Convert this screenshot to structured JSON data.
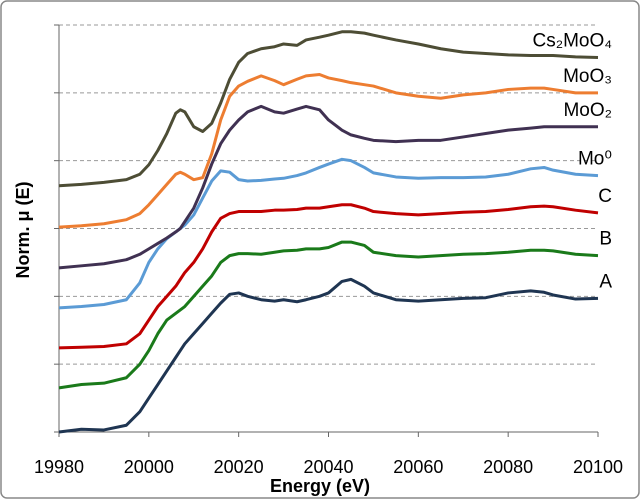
{
  "chart_data": {
    "type": "line",
    "xlabel": "Energy (eV)",
    "ylabel": "Norm. μ (E)",
    "x": [
      19980,
      19985,
      19990,
      19995,
      19998,
      20000,
      20002,
      20004,
      20006,
      20007,
      20008,
      20010,
      20012,
      20014,
      20016,
      20018,
      20020,
      20022,
      20025,
      20028,
      20030,
      20033,
      20035,
      20038,
      20040,
      20043,
      20045,
      20048,
      20050,
      20055,
      20060,
      20065,
      20070,
      20075,
      20080,
      20085,
      20088,
      20090,
      20095,
      20100
    ],
    "xlim": [
      19980,
      20100
    ],
    "xticks": [
      19980,
      20000,
      20020,
      20040,
      20060,
      20080,
      20100
    ],
    "ylim": [
      0,
      6
    ],
    "yticks": [
      0,
      1,
      2,
      3,
      4,
      5,
      6
    ],
    "grid": true,
    "series": [
      {
        "name": "A",
        "color": "#1f3552",
        "values": [
          0.0,
          0.04,
          0.03,
          0.1,
          0.3,
          0.5,
          0.7,
          0.9,
          1.1,
          1.2,
          1.3,
          1.45,
          1.6,
          1.75,
          1.9,
          2.03,
          2.05,
          2.0,
          1.95,
          1.93,
          1.95,
          1.92,
          1.95,
          2.0,
          2.05,
          2.22,
          2.25,
          2.15,
          2.05,
          1.95,
          1.93,
          1.95,
          1.97,
          1.98,
          2.05,
          2.08,
          2.06,
          2.02,
          1.96,
          1.97
        ]
      },
      {
        "name": "B",
        "color": "#1a7a1a",
        "values": [
          0.65,
          0.7,
          0.72,
          0.8,
          1.0,
          1.2,
          1.45,
          1.65,
          1.75,
          1.8,
          1.85,
          2.0,
          2.15,
          2.3,
          2.5,
          2.6,
          2.63,
          2.63,
          2.62,
          2.65,
          2.67,
          2.68,
          2.7,
          2.7,
          2.72,
          2.8,
          2.8,
          2.75,
          2.65,
          2.6,
          2.58,
          2.6,
          2.62,
          2.63,
          2.65,
          2.68,
          2.68,
          2.67,
          2.62,
          2.6
        ]
      },
      {
        "name": "C",
        "color": "#c00000",
        "values": [
          1.24,
          1.25,
          1.26,
          1.3,
          1.45,
          1.65,
          1.85,
          2.0,
          2.15,
          2.25,
          2.35,
          2.5,
          2.7,
          2.95,
          3.15,
          3.22,
          3.25,
          3.25,
          3.25,
          3.27,
          3.27,
          3.28,
          3.3,
          3.3,
          3.32,
          3.35,
          3.35,
          3.3,
          3.25,
          3.22,
          3.2,
          3.22,
          3.24,
          3.25,
          3.28,
          3.32,
          3.33,
          3.32,
          3.27,
          3.23
        ]
      },
      {
        "name": "Mo⁰",
        "color": "#5b9bd5",
        "values": [
          1.83,
          1.85,
          1.88,
          1.95,
          2.2,
          2.5,
          2.7,
          2.85,
          2.95,
          3.0,
          3.05,
          3.2,
          3.45,
          3.7,
          3.85,
          3.83,
          3.72,
          3.7,
          3.71,
          3.73,
          3.74,
          3.78,
          3.82,
          3.9,
          3.95,
          4.02,
          4.0,
          3.9,
          3.82,
          3.76,
          3.74,
          3.75,
          3.75,
          3.76,
          3.8,
          3.88,
          3.9,
          3.86,
          3.8,
          3.78
        ]
      },
      {
        "name": "MoO₂",
        "color": "#403152",
        "values": [
          2.42,
          2.45,
          2.48,
          2.54,
          2.62,
          2.7,
          2.78,
          2.86,
          2.95,
          3.0,
          3.1,
          3.3,
          3.6,
          3.95,
          4.25,
          4.45,
          4.6,
          4.72,
          4.8,
          4.72,
          4.7,
          4.76,
          4.8,
          4.75,
          4.6,
          4.45,
          4.38,
          4.33,
          4.3,
          4.28,
          4.3,
          4.3,
          4.35,
          4.4,
          4.45,
          4.48,
          4.5,
          4.5,
          4.5,
          4.5
        ]
      },
      {
        "name": "MoO₃",
        "color": "#ed7d31",
        "values": [
          3.02,
          3.04,
          3.07,
          3.13,
          3.22,
          3.35,
          3.5,
          3.65,
          3.8,
          3.83,
          3.8,
          3.72,
          3.75,
          4.1,
          4.6,
          4.95,
          5.1,
          5.17,
          5.25,
          5.18,
          5.12,
          5.2,
          5.25,
          5.27,
          5.22,
          5.18,
          5.15,
          5.12,
          5.1,
          5.0,
          4.95,
          4.92,
          4.97,
          5.0,
          5.05,
          5.07,
          5.07,
          5.05,
          5.0,
          5.0
        ]
      },
      {
        "name": "Cs₂MoO₄",
        "color": "#4d4d35",
        "values": [
          3.63,
          3.65,
          3.68,
          3.72,
          3.8,
          3.94,
          4.15,
          4.4,
          4.7,
          4.75,
          4.72,
          4.5,
          4.43,
          4.55,
          4.85,
          5.2,
          5.45,
          5.58,
          5.65,
          5.68,
          5.72,
          5.7,
          5.78,
          5.82,
          5.85,
          5.9,
          5.9,
          5.88,
          5.85,
          5.78,
          5.72,
          5.65,
          5.6,
          5.58,
          5.56,
          5.55,
          5.55,
          5.55,
          5.53,
          5.52
        ]
      }
    ]
  }
}
